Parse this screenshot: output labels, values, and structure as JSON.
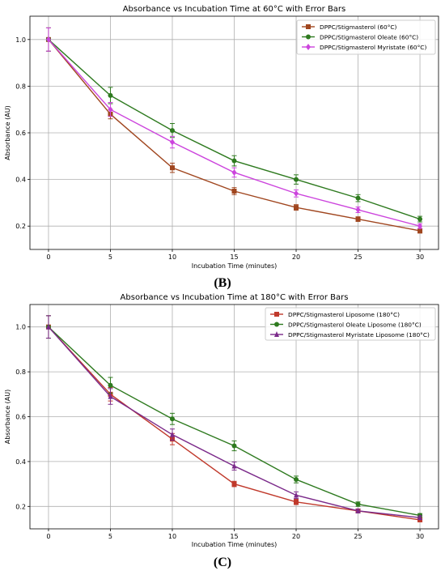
{
  "panel_labels": [
    "(B)",
    "(C)"
  ],
  "chart_data": [
    {
      "type": "line",
      "title": "Absorbance vs Incubation Time at 60°C with Error Bars",
      "xlabel": "Incubation Time (minutes)",
      "ylabel": "Absorbance (AU)",
      "x": [
        0,
        5,
        10,
        15,
        20,
        25,
        30
      ],
      "xticks": [
        "0",
        "5",
        "10",
        "15",
        "20",
        "25",
        "30"
      ],
      "yticks": [
        "0.2",
        "0.4",
        "0.6",
        "0.8",
        "1.0"
      ],
      "xlim": [
        -1.5,
        31.5
      ],
      "ylim": [
        0.1,
        1.1
      ],
      "grid": true,
      "legend_position": "top-right",
      "series": [
        {
          "name": "DPPC/Stigmasterol (60°C)",
          "marker": "square",
          "color": "#a0461f",
          "values": [
            1.0,
            0.68,
            0.45,
            0.35,
            0.28,
            0.23,
            0.18
          ],
          "errors": [
            0.05,
            0.02,
            0.02,
            0.015,
            0.012,
            0.01,
            0.01
          ]
        },
        {
          "name": "DPPC/Stigmasterol Oleate (60°C)",
          "marker": "circle",
          "color": "#2e7a1f",
          "values": [
            1.0,
            0.76,
            0.61,
            0.48,
            0.4,
            0.32,
            0.23
          ],
          "errors": [
            0.05,
            0.035,
            0.03,
            0.022,
            0.02,
            0.015,
            0.012
          ]
        },
        {
          "name": "DPPC/Stigmasterol Myristate (60°C)",
          "marker": "diamond",
          "color": "#cc44dd",
          "values": [
            1.0,
            0.7,
            0.56,
            0.43,
            0.34,
            0.27,
            0.2
          ],
          "errors": [
            0.05,
            0.03,
            0.025,
            0.02,
            0.015,
            0.012,
            0.01
          ]
        }
      ]
    },
    {
      "type": "line",
      "title": "Absorbance vs Incubation Time at 180°C with Error Bars",
      "xlabel": "Incubation Time (minutes)",
      "ylabel": "Absorbance (AU)",
      "x": [
        0,
        5,
        10,
        15,
        20,
        25,
        30
      ],
      "xticks": [
        "0",
        "5",
        "10",
        "15",
        "20",
        "25",
        "30"
      ],
      "yticks": [
        "0.2",
        "0.4",
        "0.6",
        "0.8",
        "1.0"
      ],
      "xlim": [
        -1.5,
        31.5
      ],
      "ylim": [
        0.1,
        1.1
      ],
      "grid": true,
      "legend_position": "top-right",
      "series": [
        {
          "name": "DPPC/Stigmasterol Liposome (180°C)",
          "marker": "square",
          "color": "#c0392b",
          "values": [
            1.0,
            0.7,
            0.5,
            0.3,
            0.22,
            0.18,
            0.14
          ],
          "errors": [
            0.05,
            0.03,
            0.025,
            0.012,
            0.012,
            0.008,
            0.008
          ]
        },
        {
          "name": "DPPC/Stigmasterol Oleate Liposome (180°C)",
          "marker": "circle",
          "color": "#2e7a1f",
          "values": [
            1.0,
            0.74,
            0.59,
            0.47,
            0.32,
            0.21,
            0.16
          ],
          "errors": [
            0.05,
            0.035,
            0.025,
            0.022,
            0.015,
            0.01,
            0.008
          ]
        },
        {
          "name": "DPPC/Stigmasterol Myristate Liposome (180°C)",
          "marker": "triangle",
          "color": "#7b2a8a",
          "values": [
            1.0,
            0.69,
            0.52,
            0.38,
            0.25,
            0.18,
            0.15
          ],
          "errors": [
            0.05,
            0.035,
            0.025,
            0.018,
            0.015,
            0.008,
            0.008
          ]
        }
      ]
    }
  ]
}
